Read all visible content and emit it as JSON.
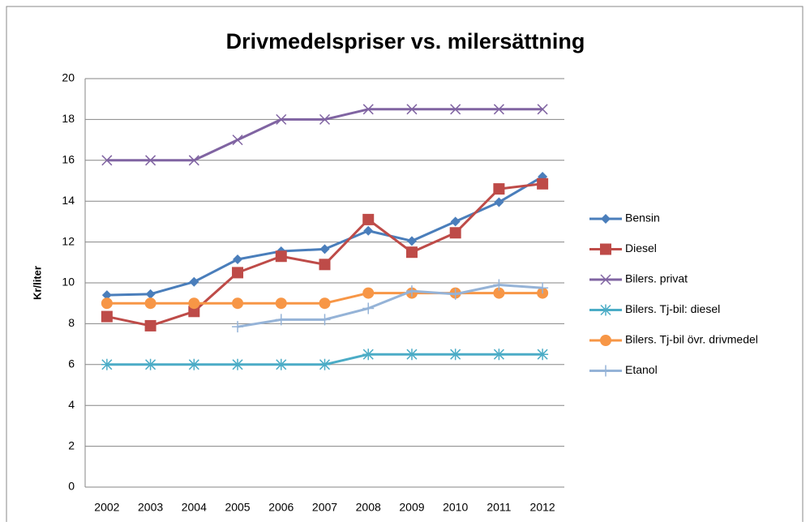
{
  "chart_data": {
    "type": "line",
    "title": "Drivmedelspriser vs. milersättning",
    "ylabel": "Kr/liter",
    "categories": [
      "2002",
      "2003",
      "2004",
      "2005",
      "2006",
      "2007",
      "2008",
      "2009",
      "2010",
      "2011",
      "2012"
    ],
    "ylim": [
      0,
      20
    ],
    "yticks": [
      0,
      2,
      4,
      6,
      8,
      10,
      12,
      14,
      16,
      18,
      20
    ],
    "grid": true,
    "legend": "right",
    "series": [
      {
        "name": "Bensin",
        "color": "#4a7ebb",
        "marker": "diamond",
        "values": [
          9.4,
          9.45,
          10.05,
          11.15,
          11.55,
          11.65,
          12.55,
          12.05,
          13.0,
          13.95,
          15.2
        ]
      },
      {
        "name": "Diesel",
        "color": "#be4b48",
        "marker": "square",
        "values": [
          8.35,
          7.9,
          8.6,
          10.5,
          11.3,
          10.9,
          13.1,
          11.5,
          12.45,
          14.6,
          14.85
        ]
      },
      {
        "name": "Bilers. privat",
        "color": "#8064a2",
        "marker": "x",
        "values": [
          16,
          16,
          16,
          17,
          18,
          18,
          18.5,
          18.5,
          18.5,
          18.5,
          18.5
        ]
      },
      {
        "name": "Bilers. Tj-bil: diesel",
        "color": "#4bacc6",
        "marker": "asterisk",
        "values": [
          6,
          6,
          6,
          6,
          6,
          6,
          6.5,
          6.5,
          6.5,
          6.5,
          6.5
        ]
      },
      {
        "name": "Bilers. Tj-bil övr. drivmedel",
        "color": "#f79646",
        "marker": "circle",
        "values": [
          9,
          9,
          9,
          9,
          9,
          9,
          9.5,
          9.5,
          9.5,
          9.5,
          9.5
        ]
      },
      {
        "name": "Etanol",
        "color": "#95b3d7",
        "marker": "plus",
        "values": [
          null,
          null,
          null,
          7.85,
          8.2,
          8.2,
          8.75,
          9.6,
          9.45,
          9.9,
          9.75
        ]
      }
    ]
  }
}
